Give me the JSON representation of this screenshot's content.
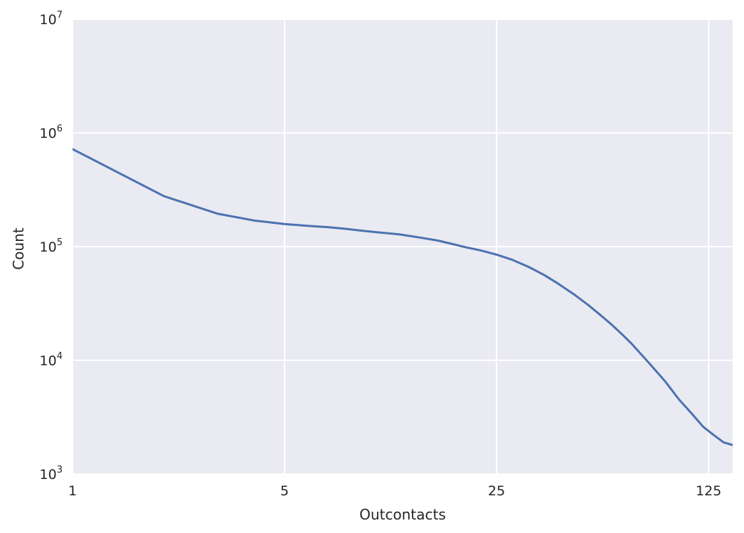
{
  "chart_data": {
    "type": "line",
    "title": "",
    "xlabel": "Outcontacts",
    "ylabel": "Count",
    "x_scale": "log",
    "y_scale": "log",
    "xlim": [
      1,
      150
    ],
    "ylim": [
      1000,
      10000000
    ],
    "grid": true,
    "x_ticks": [
      {
        "value": 1,
        "label": "1"
      },
      {
        "value": 5,
        "label": "5"
      },
      {
        "value": 25,
        "label": "25"
      },
      {
        "value": 125,
        "label": "125"
      }
    ],
    "y_ticks": [
      {
        "value": 1000,
        "base": "10",
        "exp": "3"
      },
      {
        "value": 10000,
        "base": "10",
        "exp": "4"
      },
      {
        "value": 100000,
        "base": "10",
        "exp": "5"
      },
      {
        "value": 1000000,
        "base": "10",
        "exp": "6"
      },
      {
        "value": 10000000,
        "base": "10",
        "exp": "7"
      }
    ],
    "series": [
      {
        "color": "#4c72b0",
        "x": [
          1,
          2,
          3,
          4,
          5,
          6,
          7,
          8,
          9,
          10,
          12,
          14,
          16,
          18,
          20,
          22,
          25,
          28,
          32,
          36,
          40,
          45,
          50,
          55,
          60,
          65,
          70,
          80,
          90,
          100,
          110,
          120,
          130,
          140,
          150
        ],
        "y": [
          720000,
          278000,
          195000,
          169000,
          158000,
          152000,
          148000,
          143000,
          138000,
          134000,
          128000,
          120000,
          113000,
          105000,
          98000,
          93000,
          85000,
          77000,
          66000,
          56000,
          47000,
          38000,
          30800,
          25000,
          20500,
          16800,
          13800,
          9300,
          6500,
          4500,
          3400,
          2600,
          2200,
          1900,
          1800
        ]
      }
    ]
  }
}
